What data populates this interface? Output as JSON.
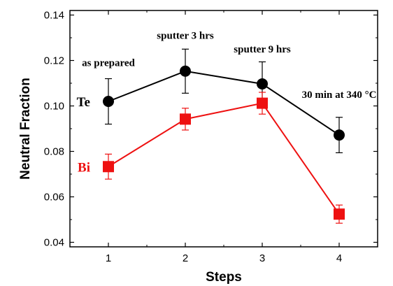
{
  "chart_data": {
    "type": "line",
    "xlabel": "Steps",
    "ylabel": "Neutral Fraction",
    "xlim": [
      0.5,
      4.5
    ],
    "ylim": [
      0.038,
      0.142
    ],
    "x": [
      1,
      2,
      3,
      4
    ],
    "xticks": [
      "1",
      "2",
      "3",
      "4"
    ],
    "yticks": [
      "0.04",
      "0.06",
      "0.08",
      "0.10",
      "0.12",
      "0.14"
    ],
    "ytick_values": [
      0.04,
      0.06,
      0.08,
      0.1,
      0.12,
      0.14
    ],
    "grid": false,
    "series": [
      {
        "name": "Te",
        "color": "#000000",
        "marker": "circle",
        "values": [
          0.102,
          0.1153,
          0.1097,
          0.0872
        ],
        "errors": [
          0.01,
          0.0097,
          0.0097,
          0.0078
        ]
      },
      {
        "name": "Bi",
        "color": "#ee1111",
        "marker": "square",
        "values": [
          0.0733,
          0.0942,
          0.1012,
          0.0524
        ],
        "errors": [
          0.0055,
          0.0048,
          0.0048,
          0.004
        ]
      }
    ],
    "annotations": [
      {
        "text": "as prepared",
        "x": 1,
        "y": 0.1175
      },
      {
        "text": "sputter 3 hrs",
        "x": 2,
        "y": 0.1295
      },
      {
        "text": "sputter 9 hrs",
        "x": 3,
        "y": 0.1235
      },
      {
        "text": "30 min at 340 °C",
        "x": 4,
        "y": 0.1035
      }
    ]
  }
}
